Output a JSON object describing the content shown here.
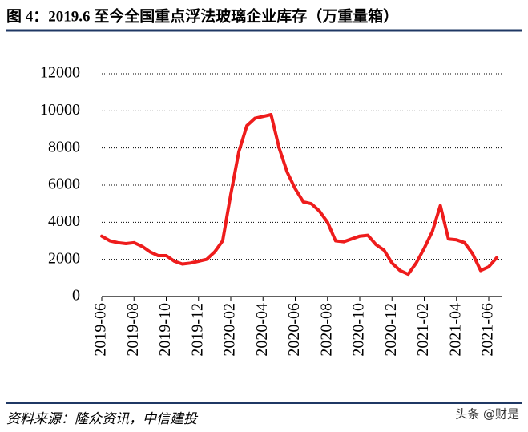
{
  "chart_data": {
    "type": "line",
    "title": "图 4：2019.6 至今全国重点浮法玻璃企业库存（万重量箱）",
    "source": "资料来源：隆众资讯，中信建投",
    "watermark": "头条 @财是",
    "categories": [
      "2019-06",
      null,
      null,
      null,
      "2019-08",
      null,
      null,
      null,
      "2019-10",
      null,
      null,
      null,
      "2019-12",
      null,
      null,
      null,
      "2020-02",
      null,
      null,
      null,
      "2020-04",
      null,
      null,
      null,
      "2020-06",
      null,
      null,
      null,
      "2020-08",
      null,
      null,
      null,
      "2020-10",
      null,
      null,
      null,
      "2020-12",
      null,
      null,
      null,
      "2021-02",
      null,
      null,
      null,
      "2021-04",
      null,
      null,
      null,
      "2021-06",
      null
    ],
    "values": [
      3250,
      3000,
      2900,
      2850,
      2900,
      2700,
      2400,
      2200,
      2200,
      1900,
      1750,
      1800,
      1900,
      2000,
      2400,
      3000,
      5500,
      7800,
      9200,
      9600,
      9700,
      9800,
      8000,
      6700,
      5800,
      5100,
      5000,
      4600,
      4000,
      3000,
      2950,
      3100,
      3250,
      3300,
      2800,
      2500,
      1800,
      1400,
      1200,
      1800,
      2600,
      3500,
      4900,
      3100,
      3050,
      2900,
      2300,
      1400,
      1600,
      2100
    ],
    "color": "#ee1c1c",
    "ylim": [
      0,
      12000
    ],
    "yticks": [
      0,
      2000,
      4000,
      6000,
      8000,
      10000,
      12000
    ],
    "grid": true
  }
}
